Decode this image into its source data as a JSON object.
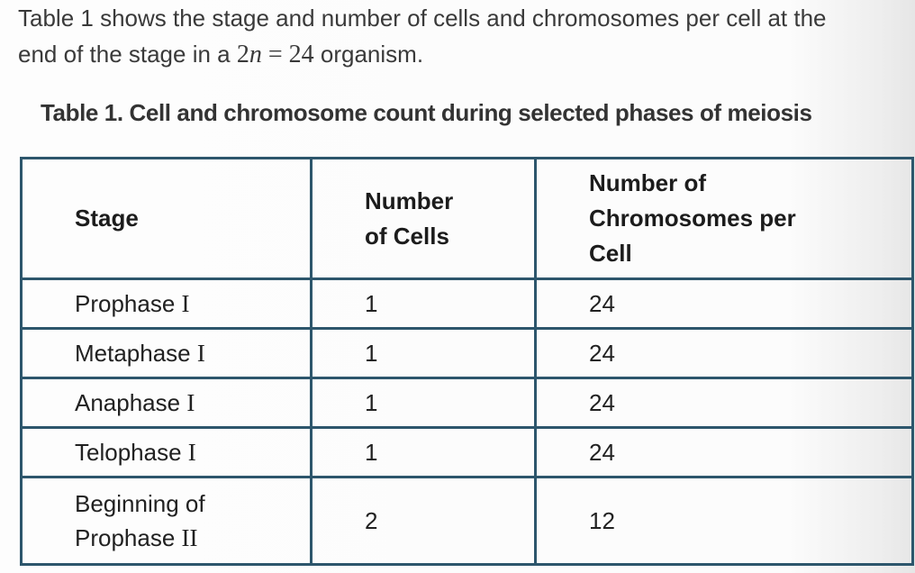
{
  "colors": {
    "table_border": "#2d566c",
    "body_text": "#3a3a3a",
    "title_text": "#333333",
    "table_text": "#212121",
    "page_edge_shade": "#e6e6e6"
  },
  "intro": {
    "line1": "Table 1 shows the stage and number of cells and chromosomes per cell at the",
    "line2_prefix": "end of the stage in a",
    "equation": {
      "coefficient": "2",
      "variable": "n",
      "equals": "=",
      "value": "24"
    },
    "line2_suffix": "organism."
  },
  "table_title": "Table 1. Cell and chromosome count during selected phases of meiosis",
  "table": {
    "headers": {
      "stage": "Stage",
      "cells": "Number\nof Cells",
      "chromosomes": "Number of\nChromosomes per\nCell"
    },
    "rows": [
      {
        "stage": "Prophase",
        "numeral": "I",
        "cells": "1",
        "chromosomes": "24"
      },
      {
        "stage": "Metaphase",
        "numeral": "I",
        "cells": "1",
        "chromosomes": "24"
      },
      {
        "stage": "Anaphase",
        "numeral": "I",
        "cells": "1",
        "chromosomes": "24"
      },
      {
        "stage": "Telophase",
        "numeral": "I",
        "cells": "1",
        "chromosomes": "24"
      },
      {
        "stage_line1": "Beginning of",
        "stage": "Prophase",
        "numeral": "II",
        "cells": "2",
        "chromosomes": "12"
      }
    ]
  }
}
